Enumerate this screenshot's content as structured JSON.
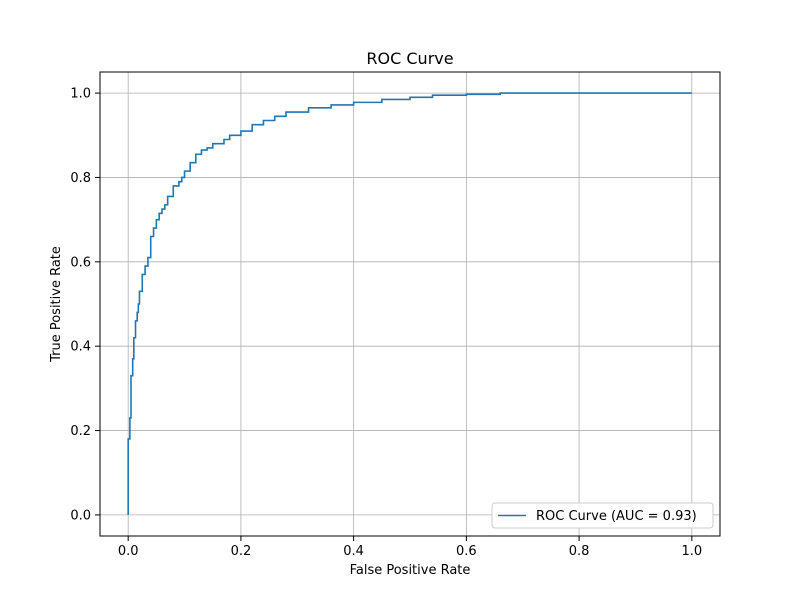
{
  "chart_data": {
    "type": "line",
    "title": "ROC Curve",
    "xlabel": "False Positive Rate",
    "ylabel": "True Positive Rate",
    "xlim": [
      -0.05,
      1.05
    ],
    "ylim": [
      -0.05,
      1.05
    ],
    "xticks": [
      0.0,
      0.2,
      0.4,
      0.6,
      0.8,
      1.0
    ],
    "yticks": [
      0.0,
      0.2,
      0.4,
      0.6,
      0.8,
      1.0
    ],
    "xtick_labels": [
      "0.0",
      "0.2",
      "0.4",
      "0.6",
      "0.8",
      "1.0"
    ],
    "ytick_labels": [
      "0.0",
      "0.2",
      "0.4",
      "0.6",
      "0.8",
      "1.0"
    ],
    "grid": true,
    "legend_position": "lower-right",
    "series": [
      {
        "name": "ROC Curve (AUC = 0.93)",
        "color": "#1f77b4",
        "x": [
          0.0,
          0.0,
          0.003,
          0.003,
          0.005,
          0.005,
          0.008,
          0.008,
          0.01,
          0.01,
          0.013,
          0.013,
          0.016,
          0.016,
          0.018,
          0.018,
          0.02,
          0.02,
          0.025,
          0.025,
          0.03,
          0.03,
          0.035,
          0.035,
          0.04,
          0.04,
          0.045,
          0.045,
          0.05,
          0.05,
          0.055,
          0.055,
          0.06,
          0.06,
          0.065,
          0.065,
          0.07,
          0.07,
          0.08,
          0.08,
          0.09,
          0.09,
          0.095,
          0.095,
          0.1,
          0.1,
          0.11,
          0.11,
          0.12,
          0.12,
          0.13,
          0.13,
          0.14,
          0.14,
          0.15,
          0.15,
          0.17,
          0.17,
          0.18,
          0.18,
          0.2,
          0.2,
          0.22,
          0.22,
          0.24,
          0.24,
          0.26,
          0.26,
          0.28,
          0.28,
          0.32,
          0.32,
          0.36,
          0.36,
          0.4,
          0.4,
          0.45,
          0.45,
          0.5,
          0.5,
          0.54,
          0.54,
          0.6,
          0.6,
          0.66,
          0.66,
          0.8,
          1.0
        ],
        "y": [
          0.0,
          0.18,
          0.18,
          0.23,
          0.23,
          0.33,
          0.33,
          0.37,
          0.37,
          0.42,
          0.42,
          0.46,
          0.46,
          0.48,
          0.48,
          0.5,
          0.5,
          0.53,
          0.53,
          0.57,
          0.57,
          0.59,
          0.59,
          0.61,
          0.61,
          0.66,
          0.66,
          0.68,
          0.68,
          0.7,
          0.7,
          0.715,
          0.715,
          0.725,
          0.725,
          0.735,
          0.735,
          0.755,
          0.755,
          0.78,
          0.78,
          0.79,
          0.79,
          0.8,
          0.8,
          0.815,
          0.815,
          0.835,
          0.835,
          0.855,
          0.855,
          0.865,
          0.865,
          0.87,
          0.87,
          0.88,
          0.88,
          0.89,
          0.89,
          0.9,
          0.9,
          0.91,
          0.91,
          0.925,
          0.925,
          0.935,
          0.935,
          0.945,
          0.945,
          0.955,
          0.955,
          0.965,
          0.965,
          0.972,
          0.972,
          0.978,
          0.978,
          0.985,
          0.985,
          0.99,
          0.99,
          0.995,
          0.995,
          0.997,
          0.997,
          1.0,
          1.0,
          1.0
        ]
      }
    ]
  }
}
